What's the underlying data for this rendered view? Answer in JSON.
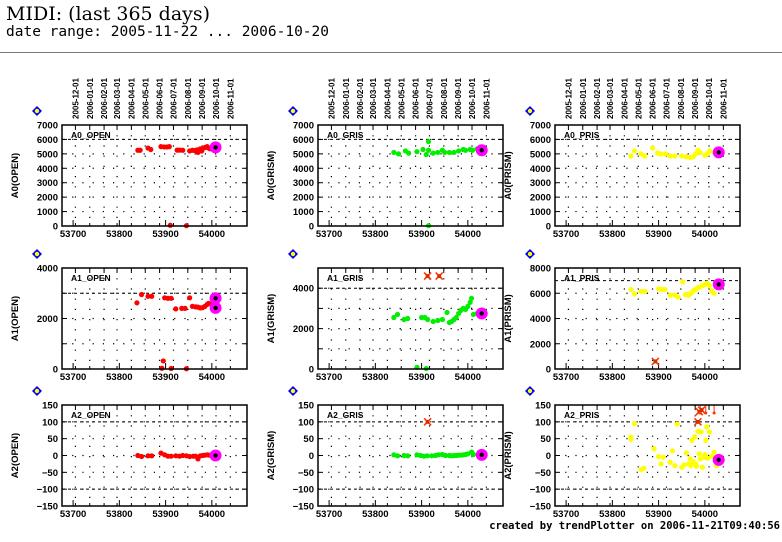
{
  "header": {
    "title": "MIDI: (last 365 days)",
    "subtitle": "date range: 2005-11-22 ... 2006-10-20"
  },
  "footer": "created by trendPlotter on 2006-11-21T09:40:56",
  "chart_data": {
    "type": "scatter",
    "x_label_ticks": [
      53700,
      53800,
      53900,
      54000
    ],
    "xlim": [
      53676,
      54076
    ],
    "date_ticks": [
      "2005-12-01",
      "2006-01-01",
      "2006-02-01",
      "2006-03-01",
      "2006-04-01",
      "2006-05-01",
      "2006-06-01",
      "2006-07-01",
      "2006-08-01",
      "2006-09-01",
      "2006-10-01",
      "2006-11-01"
    ],
    "date_tick_mjd": [
      53705,
      53736,
      53767,
      53795,
      53826,
      53856,
      53887,
      53917,
      53948,
      53979,
      54009,
      54040
    ],
    "colors": {
      "OPEN": "#ff0000",
      "GRIS": "#00ee00",
      "PRIS": "#ffff00",
      "highlight": "#ff00ff",
      "marker_center": "#000000",
      "outlier": "#ff3300"
    },
    "panels": [
      {
        "label": "A0_OPEN",
        "ylabel": "A0(OPEN)",
        "color": "#ff0000",
        "ylim": [
          0,
          7000
        ],
        "yticks": [
          0,
          1000,
          2000,
          3000,
          4000,
          5000,
          6000,
          7000
        ],
        "ref_line": 6000,
        "points": [
          [
            53840,
            5250
          ],
          [
            53845,
            5250
          ],
          [
            53862,
            5400
          ],
          [
            53868,
            5300
          ],
          [
            53890,
            5500
          ],
          [
            53897,
            5480
          ],
          [
            53903,
            5480
          ],
          [
            53908,
            5500
          ],
          [
            53925,
            5260
          ],
          [
            53930,
            5260
          ],
          [
            53937,
            5250
          ],
          [
            53952,
            5200
          ],
          [
            53958,
            5250
          ],
          [
            53963,
            5230
          ],
          [
            53968,
            5280
          ],
          [
            53970,
            5100
          ],
          [
            53975,
            5350
          ],
          [
            53978,
            5200
          ],
          [
            53982,
            5400
          ],
          [
            53986,
            5450
          ],
          [
            53990,
            5500
          ],
          [
            53993,
            5400
          ],
          [
            53996,
            5350
          ],
          [
            53910,
            50
          ],
          [
            53945,
            20
          ]
        ],
        "highlight": [
          [
            54008,
            5450
          ]
        ],
        "outliers": []
      },
      {
        "label": "A0_GRIS",
        "ylabel": "A0(GRISM)",
        "color": "#00ee00",
        "ylim": [
          0,
          7000
        ],
        "yticks": [
          0,
          1000,
          2000,
          3000,
          4000,
          5000,
          6000,
          7000
        ],
        "ref_line": 6000,
        "points": [
          [
            53840,
            5100
          ],
          [
            53850,
            5000
          ],
          [
            53865,
            5200
          ],
          [
            53872,
            5050
          ],
          [
            53890,
            5150
          ],
          [
            53903,
            5300
          ],
          [
            53910,
            4950
          ],
          [
            53915,
            5850
          ],
          [
            53915,
            5250
          ],
          [
            53925,
            5050
          ],
          [
            53935,
            5100
          ],
          [
            53945,
            5250
          ],
          [
            53950,
            5100
          ],
          [
            53960,
            5100
          ],
          [
            53970,
            5100
          ],
          [
            53980,
            5200
          ],
          [
            53990,
            5300
          ],
          [
            53995,
            5250
          ],
          [
            54005,
            5300
          ],
          [
            54010,
            5250
          ],
          [
            54020,
            5350
          ],
          [
            53915,
            20
          ]
        ],
        "highlight": [
          [
            54030,
            5250
          ]
        ],
        "outliers": []
      },
      {
        "label": "A0_PRIS",
        "ylabel": "A0(PRISM)",
        "color": "#ffff00",
        "ylim": [
          0,
          7000
        ],
        "yticks": [
          0,
          1000,
          2000,
          3000,
          4000,
          5000,
          6000,
          7000
        ],
        "ref_line": 6000,
        "points": [
          [
            53840,
            4850
          ],
          [
            53848,
            5200
          ],
          [
            53862,
            5000
          ],
          [
            53870,
            4850
          ],
          [
            53887,
            5400
          ],
          [
            53898,
            5050
          ],
          [
            53905,
            5000
          ],
          [
            53915,
            5000
          ],
          [
            53925,
            4850
          ],
          [
            53935,
            4850
          ],
          [
            53950,
            4850
          ],
          [
            53960,
            4800
          ],
          [
            53968,
            4750
          ],
          [
            53975,
            4800
          ],
          [
            53980,
            5000
          ],
          [
            53985,
            5250
          ],
          [
            53990,
            5100
          ],
          [
            54000,
            4900
          ],
          [
            54005,
            5000
          ],
          [
            54010,
            5200
          ],
          [
            54020,
            5100
          ]
        ],
        "highlight": [
          [
            54030,
            5100
          ]
        ],
        "outliers": []
      },
      {
        "label": "A1_OPEN",
        "ylabel": "A1(OPEN)",
        "color": "#ff0000",
        "ylim": [
          0,
          4000
        ],
        "yticks": [
          0,
          2000,
          4000
        ],
        "ref_line": 3000,
        "points": [
          [
            53838,
            2620
          ],
          [
            53848,
            2950
          ],
          [
            53862,
            2880
          ],
          [
            53870,
            2880
          ],
          [
            53898,
            2820
          ],
          [
            53905,
            2800
          ],
          [
            53912,
            2800
          ],
          [
            53922,
            2380
          ],
          [
            53935,
            2400
          ],
          [
            53942,
            2400
          ],
          [
            53952,
            2820
          ],
          [
            53958,
            2480
          ],
          [
            53965,
            2460
          ],
          [
            53970,
            2450
          ],
          [
            53975,
            2420
          ],
          [
            53980,
            2430
          ],
          [
            53985,
            2480
          ],
          [
            53990,
            2560
          ],
          [
            53993,
            2600
          ],
          [
            54000,
            2560
          ],
          [
            53895,
            320
          ],
          [
            53892,
            30
          ],
          [
            53912,
            20
          ],
          [
            53945,
            10
          ]
        ],
        "highlight": [
          [
            54008,
            2800
          ],
          [
            54008,
            2420
          ]
        ],
        "outliers": []
      },
      {
        "label": "A1_GRIS",
        "ylabel": "A1(GRISM)",
        "color": "#00ee00",
        "ylim": [
          0,
          5000
        ],
        "yticks": [
          0,
          2000,
          4000
        ],
        "ref_line": 4000,
        "points": [
          [
            53840,
            2550
          ],
          [
            53848,
            2700
          ],
          [
            53862,
            2450
          ],
          [
            53870,
            2500
          ],
          [
            53900,
            2550
          ],
          [
            53907,
            2550
          ],
          [
            53913,
            2450
          ],
          [
            53925,
            2350
          ],
          [
            53935,
            2400
          ],
          [
            53945,
            2450
          ],
          [
            53955,
            2800
          ],
          [
            53960,
            2300
          ],
          [
            53965,
            2350
          ],
          [
            53970,
            2450
          ],
          [
            53975,
            2550
          ],
          [
            53980,
            2750
          ],
          [
            53985,
            2900
          ],
          [
            53990,
            3000
          ],
          [
            53995,
            2950
          ],
          [
            54000,
            3100
          ],
          [
            54005,
            3300
          ],
          [
            54008,
            3500
          ],
          [
            54012,
            2700
          ],
          [
            54020,
            2750
          ],
          [
            53890,
            80
          ],
          [
            53910,
            20
          ]
        ],
        "highlight": [
          [
            54030,
            2750
          ]
        ],
        "outliers": [
          [
            53913,
            4600
          ],
          [
            53938,
            4600
          ]
        ]
      },
      {
        "label": "A1_PRIS",
        "ylabel": "A1(PRISM)",
        "color": "#ffff00",
        "ylim": [
          0,
          8000
        ],
        "yticks": [
          0,
          2000,
          4000,
          6000,
          8000
        ],
        "ref_line": 7000,
        "points": [
          [
            53840,
            6300
          ],
          [
            53848,
            5950
          ],
          [
            53862,
            6150
          ],
          [
            53870,
            6150
          ],
          [
            53900,
            6350
          ],
          [
            53907,
            6300
          ],
          [
            53913,
            6300
          ],
          [
            53925,
            5850
          ],
          [
            53935,
            5850
          ],
          [
            53942,
            5700
          ],
          [
            53952,
            6900
          ],
          [
            53958,
            5900
          ],
          [
            53965,
            5850
          ],
          [
            53970,
            6000
          ],
          [
            53975,
            6200
          ],
          [
            53980,
            6300
          ],
          [
            53985,
            6450
          ],
          [
            53990,
            6500
          ],
          [
            53995,
            6600
          ],
          [
            54000,
            6700
          ],
          [
            54005,
            6800
          ],
          [
            54010,
            6600
          ],
          [
            54015,
            6200
          ],
          [
            54020,
            6000
          ]
        ],
        "highlight": [
          [
            54030,
            6700
          ]
        ],
        "outliers": [
          [
            53893,
            600
          ]
        ]
      },
      {
        "label": "A2_OPEN",
        "ylabel": "A2(OPEN)",
        "color": "#ff0000",
        "ylim": [
          -150,
          150
        ],
        "yticks": [
          -150,
          -100,
          -50,
          0,
          50,
          100,
          150
        ],
        "ref_line": 100,
        "ref_line_low": -100,
        "points": [
          [
            53840,
            0
          ],
          [
            53848,
            -3
          ],
          [
            53862,
            -1
          ],
          [
            53870,
            -1
          ],
          [
            53890,
            7
          ],
          [
            53898,
            2
          ],
          [
            53905,
            -2
          ],
          [
            53912,
            -2
          ],
          [
            53922,
            -1
          ],
          [
            53930,
            -2
          ],
          [
            53937,
            0
          ],
          [
            53945,
            -1
          ],
          [
            53952,
            -3
          ],
          [
            53960,
            -2
          ],
          [
            53965,
            -2
          ],
          [
            53970,
            -10
          ],
          [
            53975,
            -1
          ],
          [
            53980,
            0
          ],
          [
            53985,
            1
          ],
          [
            53990,
            2
          ],
          [
            53995,
            1
          ],
          [
            54000,
            2
          ]
        ],
        "highlight": [
          [
            54008,
            0
          ]
        ],
        "outliers": []
      },
      {
        "label": "A2_GRIS",
        "ylabel": "A2(GRISM)",
        "color": "#00ee00",
        "ylim": [
          -150,
          150
        ],
        "yticks": [
          -150,
          -100,
          -50,
          0,
          50,
          100,
          150
        ],
        "ref_line": 100,
        "ref_line_low": -100,
        "points": [
          [
            53840,
            2
          ],
          [
            53848,
            -1
          ],
          [
            53862,
            0
          ],
          [
            53870,
            -1
          ],
          [
            53890,
            2
          ],
          [
            53898,
            0
          ],
          [
            53905,
            -2
          ],
          [
            53912,
            -1
          ],
          [
            53922,
            -1
          ],
          [
            53930,
            0
          ],
          [
            53937,
            2
          ],
          [
            53945,
            3
          ],
          [
            53952,
            0
          ],
          [
            53960,
            0
          ],
          [
            53965,
            -1
          ],
          [
            53970,
            0
          ],
          [
            53975,
            0
          ],
          [
            53980,
            1
          ],
          [
            53985,
            1
          ],
          [
            53990,
            2
          ],
          [
            53995,
            3
          ],
          [
            54000,
            5
          ],
          [
            54008,
            10
          ],
          [
            54012,
            3
          ]
        ],
        "highlight": [
          [
            54030,
            2
          ]
        ],
        "outliers": [
          [
            53913,
            100
          ]
        ]
      },
      {
        "label": "A2_PRIS",
        "ylabel": "A2(PRISM)",
        "color": "#ffff00",
        "ylim": [
          -150,
          150
        ],
        "yticks": [
          -150,
          -100,
          -50,
          0,
          50,
          100,
          150
        ],
        "ref_line": 100,
        "ref_line_low": -100,
        "points": [
          [
            53840,
            55
          ],
          [
            53840,
            48
          ],
          [
            53848,
            95
          ],
          [
            53862,
            -42
          ],
          [
            53868,
            -38
          ],
          [
            53890,
            20
          ],
          [
            53900,
            -3
          ],
          [
            53905,
            -25
          ],
          [
            53910,
            -5
          ],
          [
            53925,
            -20
          ],
          [
            53930,
            14
          ],
          [
            53935,
            -30
          ],
          [
            53940,
            93
          ],
          [
            53950,
            -35
          ],
          [
            53955,
            -28
          ],
          [
            53960,
            8
          ],
          [
            53965,
            -25
          ],
          [
            53968,
            -10
          ],
          [
            53970,
            -30
          ],
          [
            53972,
            45
          ],
          [
            53975,
            -18
          ],
          [
            53978,
            55
          ],
          [
            53980,
            -25
          ],
          [
            53982,
            -32
          ],
          [
            53985,
            72
          ],
          [
            53988,
            5
          ],
          [
            53990,
            -10
          ],
          [
            53992,
            70
          ],
          [
            53995,
            -35
          ],
          [
            53998,
            -5
          ],
          [
            54000,
            3
          ],
          [
            54002,
            45
          ],
          [
            54004,
            85
          ],
          [
            54006,
            -8
          ],
          [
            54010,
            70
          ],
          [
            54015,
            -2
          ],
          [
            54020,
            10
          ],
          [
            54025,
            -30
          ]
        ],
        "highlight": [
          [
            54030,
            -13
          ]
        ],
        "outliers": [
          [
            53985,
            100
          ],
          [
            53988,
            130
          ],
          [
            53990,
            140
          ],
          [
            53993,
            135
          ],
          [
            54002,
            145
          ],
          [
            54020,
            140
          ]
        ]
      }
    ]
  }
}
